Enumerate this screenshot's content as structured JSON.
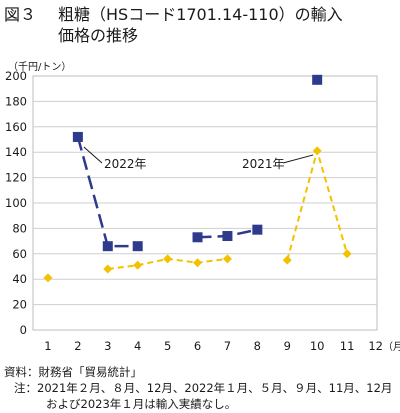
{
  "figure": {
    "number": "図３",
    "title_line1": "粗糖（HSコード1701.14-110）の輸入",
    "title_line2": "価格の推移"
  },
  "chart_data": {
    "type": "line",
    "ylabel": "（千円/トン）",
    "xlabel_unit": "（月）",
    "ylim": [
      0,
      200
    ],
    "yticks": [
      0,
      20,
      40,
      60,
      80,
      100,
      120,
      140,
      160,
      180,
      200
    ],
    "xlim": [
      0.5,
      12
    ],
    "categories": [
      "1",
      "2",
      "3",
      "4",
      "5",
      "6",
      "7",
      "8",
      "9",
      "10",
      "11",
      "12"
    ],
    "grid": true,
    "series": [
      {
        "name": "2022年",
        "color": "#2e3a8c",
        "line_style": "long-dash",
        "marker": "square",
        "points": [
          {
            "x": 2,
            "y": 152
          },
          {
            "x": 3,
            "y": 66
          },
          {
            "x": 4,
            "y": 66
          },
          {
            "x": 6,
            "y": 73
          },
          {
            "x": 7,
            "y": 74
          },
          {
            "x": 8,
            "y": 79
          },
          {
            "x": 10,
            "y": 197
          }
        ],
        "segments": [
          [
            2,
            3,
            4
          ],
          [
            6,
            7,
            8
          ]
        ]
      },
      {
        "name": "2021年",
        "color": "#f2c200",
        "line_style": "dash",
        "marker": "diamond",
        "points": [
          {
            "x": 1,
            "y": 41
          },
          {
            "x": 3,
            "y": 48
          },
          {
            "x": 4,
            "y": 51
          },
          {
            "x": 5,
            "y": 56
          },
          {
            "x": 6,
            "y": 53
          },
          {
            "x": 7,
            "y": 56
          },
          {
            "x": 9,
            "y": 55
          },
          {
            "x": 10,
            "y": 141
          },
          {
            "x": 11,
            "y": 60
          }
        ],
        "segments": [
          [
            3,
            4,
            5,
            6,
            7
          ],
          [
            9,
            10,
            11
          ]
        ]
      }
    ]
  },
  "notes": {
    "source": "資料：財務省「貿易統計」",
    "note_line1": "注：2021年２月、８月、12月、2022年１月、５月、９月、11月、12月",
    "note_line2": "および2023年１月は輸入実績なし。"
  }
}
